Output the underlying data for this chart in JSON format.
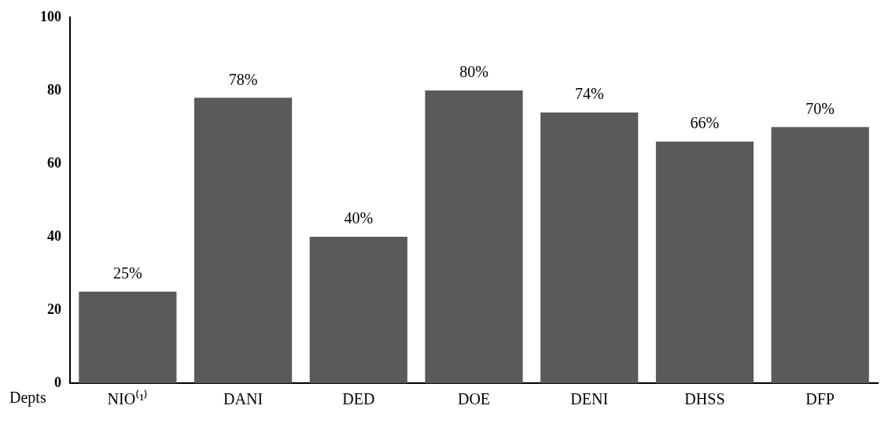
{
  "chart_data": {
    "type": "bar",
    "xlabel": "Depts",
    "categories": [
      "NIO⁽¹⁾",
      "DANI",
      "DED",
      "DOE",
      "DENI",
      "DHSS",
      "DFP"
    ],
    "values": [
      25,
      78,
      40,
      80,
      74,
      66,
      70
    ],
    "value_labels": [
      "25%",
      "78%",
      "40%",
      "80%",
      "74%",
      "66%",
      "70%"
    ],
    "color": "#5a5a5a",
    "ylim": [
      0,
      100
    ],
    "yticks": [
      0,
      20,
      40,
      60,
      80,
      100
    ],
    "grid": false,
    "legend": false
  }
}
